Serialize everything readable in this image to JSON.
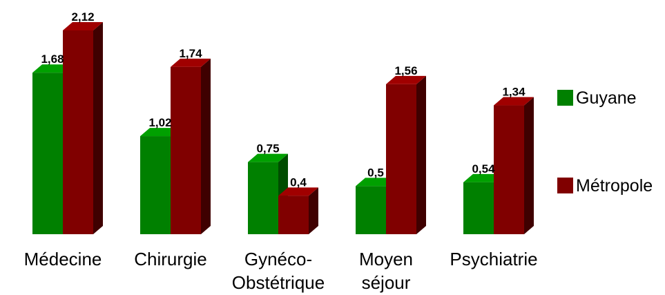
{
  "chart_data": {
    "type": "bar",
    "categories": [
      [
        "Médecine"
      ],
      [
        "Chirurgie"
      ],
      [
        "Gynéco-",
        "Obstétrique"
      ],
      [
        "Moyen",
        "séjour"
      ],
      [
        "Psychiatrie"
      ]
    ],
    "series": [
      {
        "name": "Guyane",
        "values": [
          1.68,
          1.02,
          0.75,
          0.5,
          0.54
        ],
        "labels": [
          "1,68",
          "1,02",
          "0,75",
          "0,5",
          "0,54"
        ]
      },
      {
        "name": "Métropole",
        "values": [
          2.12,
          1.74,
          0.4,
          1.56,
          1.34
        ],
        "labels": [
          "2,12",
          "1,74",
          "0,4",
          "1,56",
          "1,34"
        ]
      }
    ],
    "ylim": [
      0,
      2.12
    ],
    "grid": false,
    "legend_position": "right",
    "style": "3d-bar",
    "colors": {
      "Guyane": {
        "front": "#008000",
        "top": "#00a000",
        "side": "#004d00"
      },
      "Métropole": {
        "front": "#800000",
        "top": "#a00000",
        "side": "#3f0000"
      }
    }
  }
}
